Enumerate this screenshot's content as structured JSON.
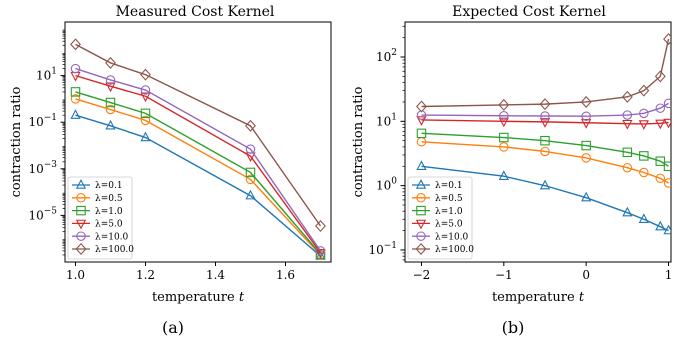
{
  "chart_data": [
    {
      "type": "line",
      "title": "Measured Cost Kernel",
      "xlabel": "temperature",
      "xlabel_var": "t",
      "ylabel": "contraction ratio",
      "yscale": "log",
      "xlim": [
        0.97,
        1.73
      ],
      "ylim": [
        1e-07,
        2000
      ],
      "xticks": [
        1.0,
        1.2,
        1.4,
        1.6
      ],
      "xtick_labels": [
        "1.0",
        "1.2",
        "1.4",
        "1.6"
      ],
      "yticks_exp": [
        -5,
        -3,
        -1,
        1
      ],
      "ytick_base": "10",
      "legend_loc": "lower-left",
      "grid": false,
      "caption": "(a)",
      "x": [
        1.0,
        1.1,
        1.2,
        1.5,
        1.7
      ],
      "series": [
        {
          "name": "λ=0.1",
          "color": "#1f77b4",
          "marker": "triangle-up",
          "values": [
            0.2,
            0.07,
            0.022,
            7e-05,
            1.8e-07
          ]
        },
        {
          "name": "λ=0.5",
          "color": "#ff7f0e",
          "marker": "circle",
          "values": [
            1.0,
            0.35,
            0.12,
            0.00035,
            2e-07
          ]
        },
        {
          "name": "λ=1.0",
          "color": "#2ca02c",
          "marker": "square",
          "values": [
            2.0,
            0.7,
            0.24,
            0.0007,
            2.2e-07
          ]
        },
        {
          "name": "λ=5.0",
          "color": "#d62728",
          "marker": "triangle-down",
          "values": [
            10.0,
            3.5,
            1.3,
            0.0035,
            2.5e-07
          ]
        },
        {
          "name": "λ=10.0",
          "color": "#9467bd",
          "marker": "circle",
          "values": [
            20.0,
            6.5,
            2.4,
            0.007,
            3e-07
          ]
        },
        {
          "name": "λ=100.0",
          "color": "#8c564b",
          "marker": "diamond",
          "values": [
            220.0,
            35.0,
            11.0,
            0.07,
            3.5e-06
          ]
        }
      ]
    },
    {
      "type": "line",
      "title": "Expected Cost Kernel",
      "xlabel": "temperature",
      "xlabel_var": "t",
      "ylabel": "contraction ratio",
      "yscale": "log",
      "xlim": [
        -2.2,
        1.03
      ],
      "ylim": [
        0.065,
        350
      ],
      "xticks": [
        -2,
        -1,
        0,
        1
      ],
      "xtick_labels": [
        "−2",
        "−1",
        "0",
        "1"
      ],
      "yticks_exp": [
        -1,
        0,
        1,
        2
      ],
      "ytick_base": "10",
      "legend_loc": "lower-left",
      "grid": false,
      "caption": "(b)",
      "x": [
        -2.0,
        -1.0,
        -0.5,
        0.0,
        0.5,
        0.7,
        0.9,
        1.0
      ],
      "series": [
        {
          "name": "λ=0.1",
          "color": "#1f77b4",
          "marker": "triangle-up",
          "values": [
            2.0,
            1.4,
            1.0,
            0.65,
            0.38,
            0.3,
            0.23,
            0.2
          ]
        },
        {
          "name": "λ=0.5",
          "color": "#ff7f0e",
          "marker": "circle",
          "values": [
            4.8,
            4.0,
            3.4,
            2.7,
            1.9,
            1.6,
            1.3,
            1.1
          ]
        },
        {
          "name": "λ=1.0",
          "color": "#2ca02c",
          "marker": "square",
          "values": [
            6.5,
            5.6,
            5.0,
            4.2,
            3.3,
            2.9,
            2.4,
            2.0
          ]
        },
        {
          "name": "λ=5.0",
          "color": "#d62728",
          "marker": "triangle-down",
          "values": [
            10.5,
            10.0,
            9.8,
            9.5,
            9.2,
            9.1,
            9.3,
            9.6
          ]
        },
        {
          "name": "λ=10.0",
          "color": "#9467bd",
          "marker": "circle",
          "values": [
            12.5,
            12.2,
            12.1,
            12.0,
            12.5,
            13.3,
            16.0,
            19.0
          ]
        },
        {
          "name": "λ=100.0",
          "color": "#8c564b",
          "marker": "diamond",
          "values": [
            17.0,
            18.0,
            18.5,
            20.0,
            24.0,
            30.0,
            50.0,
            190.0
          ]
        }
      ]
    }
  ]
}
